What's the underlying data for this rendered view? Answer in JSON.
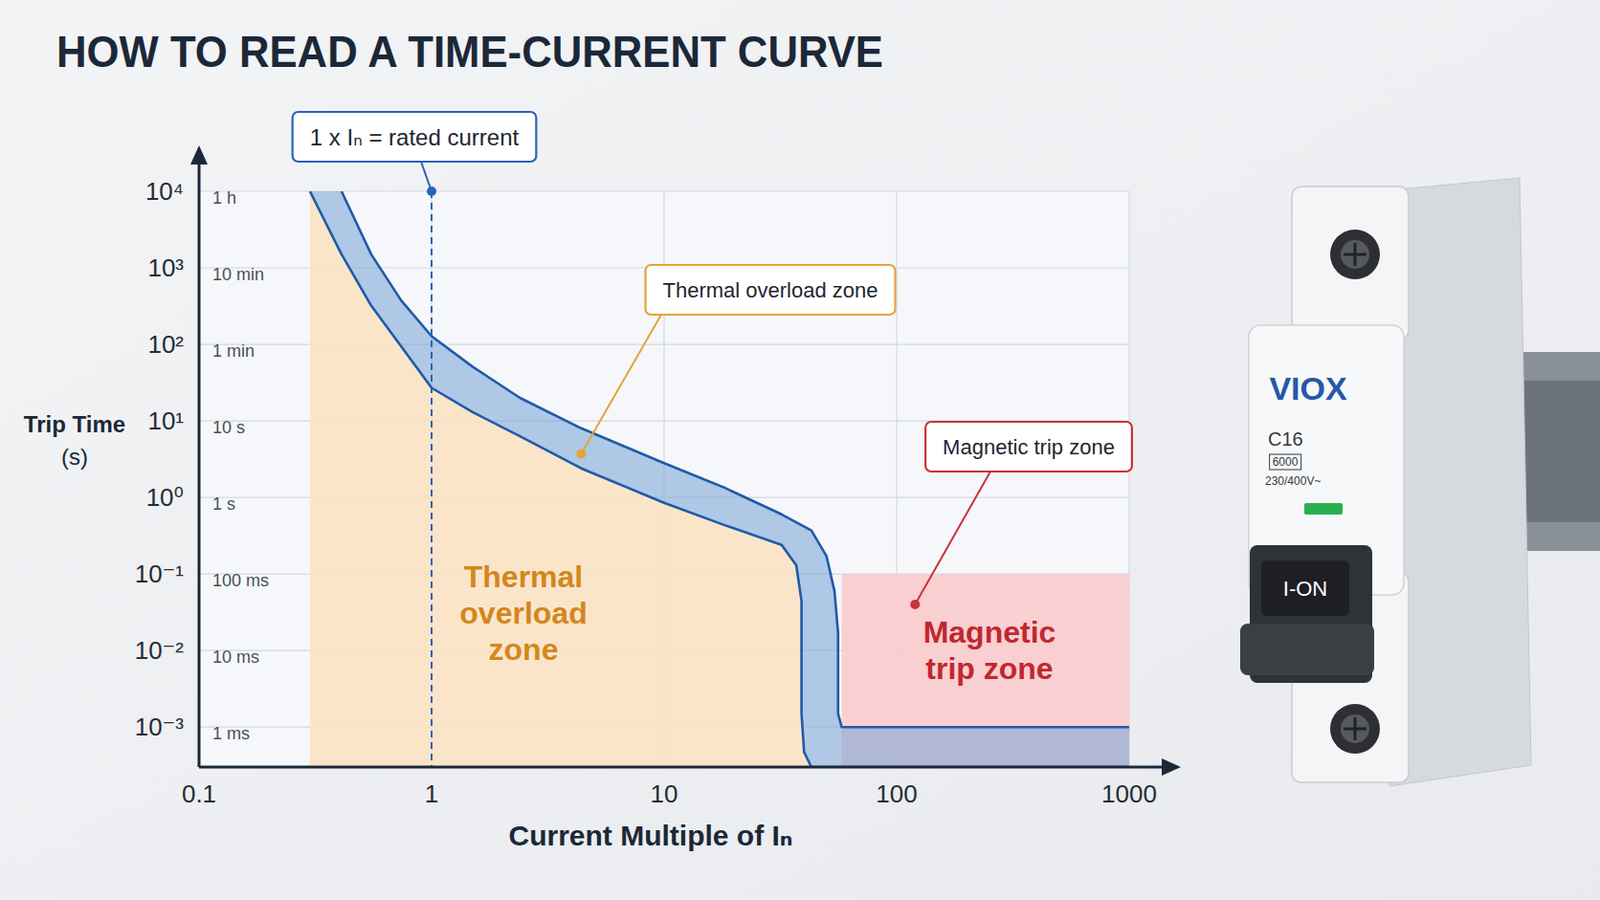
{
  "chart_data": {
    "type": "band",
    "title": "HOW TO READ A TIME-CURRENT CURVE",
    "x_label": "Current Multiple of Iₙ",
    "y_label": "Trip Time (s)",
    "log": true,
    "grid": true,
    "xlim": [
      0.1,
      1000
    ],
    "xticks": [
      0.1,
      1,
      10,
      100,
      1000
    ],
    "ylim": [
      0.0003,
      10000
    ],
    "yticks": [
      {
        "value": 0.001,
        "label": "10⁻³"
      },
      {
        "value": 0.01,
        "label": "10⁻²"
      },
      {
        "value": 0.1,
        "label": "10⁻¹"
      },
      {
        "value": 1,
        "label": "10⁰"
      },
      {
        "value": 10,
        "label": "10¹"
      },
      {
        "value": 100,
        "label": "10²"
      },
      {
        "value": 1000,
        "label": "10³"
      },
      {
        "value": 10000,
        "label": "10⁴"
      }
    ],
    "time_labels": [
      {
        "value": 0.001,
        "label": "1 ms"
      },
      {
        "value": 0.01,
        "label": "10 ms"
      },
      {
        "value": 0.1,
        "label": "100 ms"
      },
      {
        "value": 1,
        "label": "1 s"
      },
      {
        "value": 10,
        "label": "10 s"
      },
      {
        "value": 100,
        "label": "1 min"
      },
      {
        "value": 1000,
        "label": "10 min"
      },
      {
        "value": 10000,
        "label": "1 h"
      }
    ],
    "series": [
      {
        "color": "#1f5aa8",
        "x": [
          0.41,
          0.55,
          0.74,
          1,
          1.5,
          2.4,
          4.4,
          10,
          18,
          32,
          43,
          50,
          54,
          56,
          56,
          58,
          1000
        ],
        "values": [
          10000,
          1500,
          375,
          128,
          51,
          20,
          8,
          2.8,
          1.36,
          0.6,
          0.37,
          0.17,
          0.06,
          0.017,
          0.0015,
          0.001,
          0.001
        ]
      },
      {
        "color": "#1f5aa8",
        "x": [
          0.3,
          0.41,
          0.55,
          1,
          1.5,
          2.4,
          4.4,
          10,
          18,
          32,
          37,
          39,
          39,
          40,
          43,
          1000
        ],
        "values": [
          10000,
          1500,
          320,
          27,
          13,
          6.3,
          2.4,
          0.85,
          0.44,
          0.24,
          0.13,
          0.044,
          0.0015,
          0.00047,
          0.0003,
          0.0003
        ]
      }
    ],
    "zones": [
      {
        "label_lines": [
          "Thermal",
          "overload",
          "zone"
        ],
        "color": "#fbe2bf",
        "x_start": 0.3
      },
      {
        "label_lines": [
          "Magnetic",
          "trip zone"
        ],
        "color": "#f9cacc",
        "xlim": [
          58,
          1000
        ],
        "ylim": [
          0.0003,
          0.1
        ]
      }
    ],
    "reference_line": {
      "x": 1,
      "label": "1 x Iₙ = rated current",
      "color": "#2a62b8"
    },
    "callouts": [
      {
        "text": "Thermal overload zone",
        "x": 4.4,
        "y": 3.7,
        "color": "#e3a53a"
      },
      {
        "text": "Magnetic trip zone",
        "x": 120,
        "y": 0.04,
        "color": "#c8323a"
      }
    ],
    "device": {
      "brand": "VIOX",
      "rating": "C16",
      "breaking_capacity": "6000",
      "voltage": "230/400V~",
      "switch_label": "I-ON"
    }
  }
}
